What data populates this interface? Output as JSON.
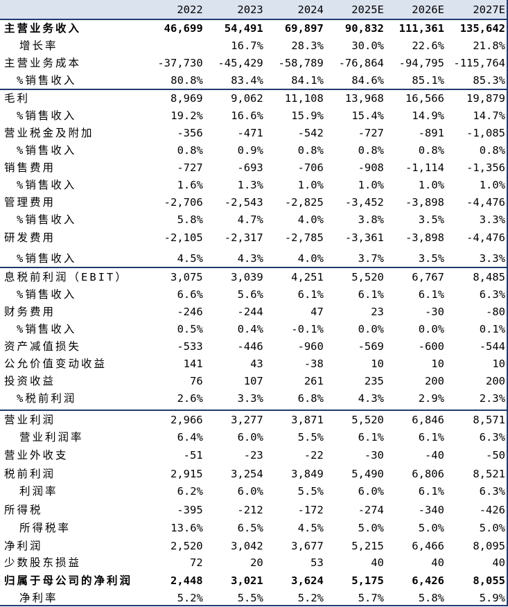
{
  "years": [
    "2022",
    "2023",
    "2024",
    "2025E",
    "2026E",
    "2027E"
  ],
  "rows": [
    {
      "label": "主营业务收入",
      "vals": [
        "46,699",
        "54,491",
        "69,897",
        "90,832",
        "111,361",
        "135,642"
      ]
    },
    {
      "label": "增长率",
      "vals": [
        "",
        "16.7%",
        "28.3%",
        "30.0%",
        "22.6%",
        "21.8%"
      ]
    },
    {
      "label": "主营业务成本",
      "vals": [
        "-37,730",
        "-45,429",
        "-58,789",
        "-76,864",
        "-94,795",
        "-115,764"
      ]
    },
    {
      "label": "%销售收入",
      "vals": [
        "80.8%",
        "83.4%",
        "84.1%",
        "84.6%",
        "85.1%",
        "85.3%"
      ]
    },
    {
      "label": "毛利",
      "vals": [
        "8,969",
        "9,062",
        "11,108",
        "13,968",
        "16,566",
        "19,879"
      ]
    },
    {
      "label": "%销售收入",
      "vals": [
        "19.2%",
        "16.6%",
        "15.9%",
        "15.4%",
        "14.9%",
        "14.7%"
      ]
    },
    {
      "label": "营业税金及附加",
      "vals": [
        "-356",
        "-471",
        "-542",
        "-727",
        "-891",
        "-1,085"
      ]
    },
    {
      "label": "%销售收入",
      "vals": [
        "0.8%",
        "0.9%",
        "0.8%",
        "0.8%",
        "0.8%",
        "0.8%"
      ]
    },
    {
      "label": "销售费用",
      "vals": [
        "-727",
        "-693",
        "-706",
        "-908",
        "-1,114",
        "-1,356"
      ]
    },
    {
      "label": "%销售收入",
      "vals": [
        "1.6%",
        "1.3%",
        "1.0%",
        "1.0%",
        "1.0%",
        "1.0%"
      ]
    },
    {
      "label": "管理费用",
      "vals": [
        "-2,706",
        "-2,543",
        "-2,825",
        "-3,452",
        "-3,898",
        "-4,476"
      ]
    },
    {
      "label": "%销售收入",
      "vals": [
        "5.8%",
        "4.7%",
        "4.0%",
        "3.8%",
        "3.5%",
        "3.3%"
      ]
    },
    {
      "label": "研发费用",
      "vals": [
        "-2,105",
        "-2,317",
        "-2,785",
        "-3,361",
        "-3,898",
        "-4,476"
      ]
    },
    {
      "label": "%销售收入",
      "vals": [
        "4.5%",
        "4.3%",
        "4.0%",
        "3.7%",
        "3.5%",
        "3.3%"
      ]
    },
    {
      "label": "息税前利润（EBIT）",
      "vals": [
        "3,075",
        "3,039",
        "4,251",
        "5,520",
        "6,767",
        "8,485"
      ]
    },
    {
      "label": "%销售收入",
      "vals": [
        "6.6%",
        "5.6%",
        "6.1%",
        "6.1%",
        "6.1%",
        "6.3%"
      ]
    },
    {
      "label": "财务费用",
      "vals": [
        "-246",
        "-244",
        "47",
        "23",
        "-30",
        "-80"
      ]
    },
    {
      "label": "%销售收入",
      "vals": [
        "0.5%",
        "0.4%",
        "-0.1%",
        "0.0%",
        "0.0%",
        "0.1%"
      ]
    },
    {
      "label": "资产减值损失",
      "vals": [
        "-533",
        "-446",
        "-960",
        "-569",
        "-600",
        "-544"
      ]
    },
    {
      "label": "公允价值变动收益",
      "vals": [
        "141",
        "43",
        "-38",
        "10",
        "10",
        "10"
      ]
    },
    {
      "label": "投资收益",
      "vals": [
        "76",
        "107",
        "261",
        "235",
        "200",
        "200"
      ]
    },
    {
      "label": "%税前利润",
      "vals": [
        "2.6%",
        "3.3%",
        "6.8%",
        "4.3%",
        "2.9%",
        "2.3%"
      ]
    },
    {
      "label": "营业利润",
      "vals": [
        "2,966",
        "3,277",
        "3,871",
        "5,520",
        "6,846",
        "8,571"
      ]
    },
    {
      "label": "营业利润率",
      "vals": [
        "6.4%",
        "6.0%",
        "5.5%",
        "6.1%",
        "6.1%",
        "6.3%"
      ]
    },
    {
      "label": "营业外收支",
      "vals": [
        "-51",
        "-23",
        "-22",
        "-30",
        "-40",
        "-50"
      ]
    },
    {
      "label": "税前利润",
      "vals": [
        "2,915",
        "3,254",
        "3,849",
        "5,490",
        "6,806",
        "8,521"
      ]
    },
    {
      "label": "利润率",
      "vals": [
        "6.2%",
        "6.0%",
        "5.5%",
        "6.0%",
        "6.1%",
        "6.3%"
      ]
    },
    {
      "label": "所得税",
      "vals": [
        "-395",
        "-212",
        "-172",
        "-274",
        "-340",
        "-426"
      ]
    },
    {
      "label": "所得税率",
      "vals": [
        "13.6%",
        "6.5%",
        "4.5%",
        "5.0%",
        "5.0%",
        "5.0%"
      ]
    },
    {
      "label": "净利润",
      "vals": [
        "2,520",
        "3,042",
        "3,677",
        "5,215",
        "6,466",
        "8,095"
      ]
    },
    {
      "label": "少数股东损益",
      "vals": [
        "72",
        "20",
        "53",
        "40",
        "40",
        "40"
      ]
    },
    {
      "label": "归属于母公司的净利润",
      "vals": [
        "2,448",
        "3,021",
        "3,624",
        "5,175",
        "6,426",
        "8,055"
      ]
    },
    {
      "label": "净利率",
      "vals": [
        "5.2%",
        "5.5%",
        "5.2%",
        "5.7%",
        "5.8%",
        "5.9%"
      ]
    }
  ]
}
